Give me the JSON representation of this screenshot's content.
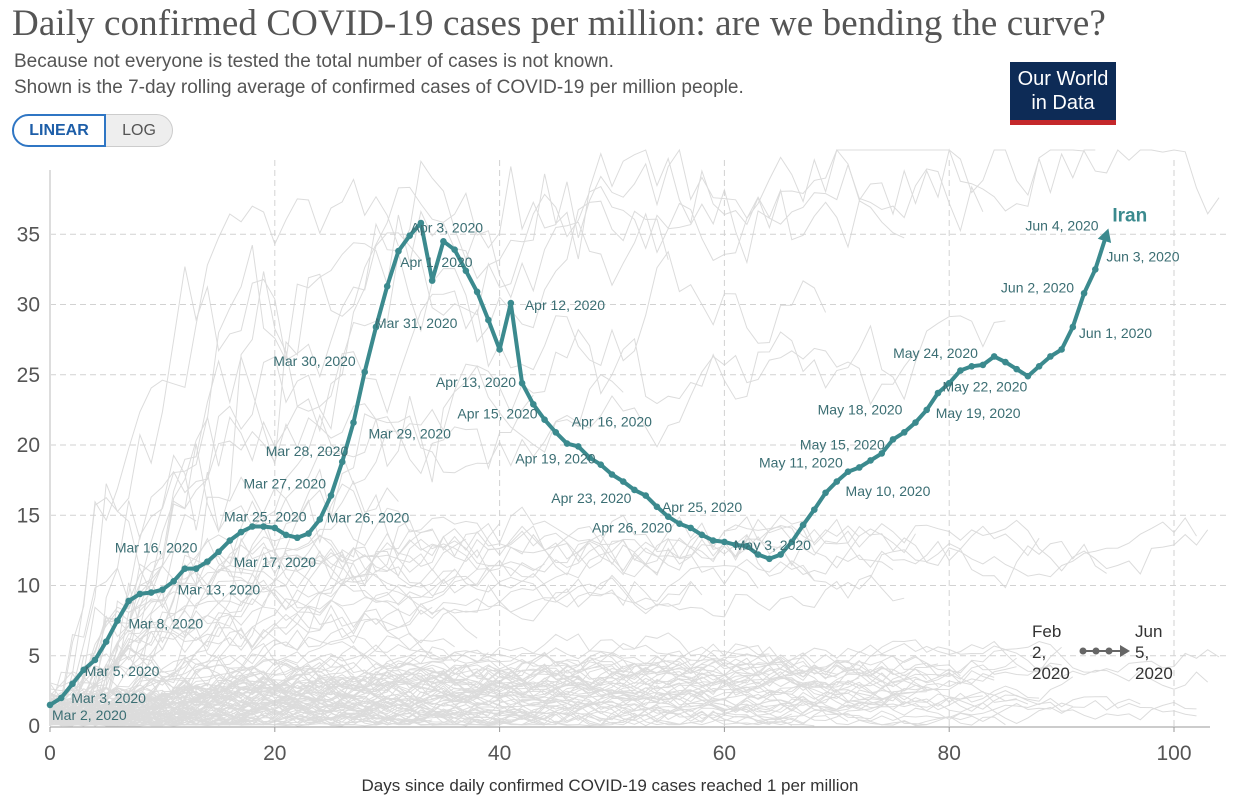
{
  "title": "Daily confirmed COVID-19 cases per million: are we bending the curve?",
  "subtitle_line1": "Because not everyone is tested the total number of cases is not known.",
  "subtitle_line2": "Shown is the 7-day rolling average of confirmed cases of COVID-19 per million people.",
  "logo": {
    "line1": "Our World",
    "line2": "in Data"
  },
  "scale_toggle": {
    "linear_label": "LINEAR",
    "log_label": "LOG",
    "selected": "LINEAR"
  },
  "timeline": {
    "start_label": "Feb\n2,\n2020",
    "end_label": "Jun\n5,\n2020"
  },
  "colors": {
    "highlight": "#3b8a8e",
    "background_lines": "#dcdcdc",
    "grid": "#d2d2d2",
    "logo_bg": "#0d2b56",
    "logo_bar": "#c4282b"
  },
  "chart_data": {
    "type": "line",
    "title": "Daily confirmed COVID-19 cases per million: are we bending the curve?",
    "xlabel": "Days since daily confirmed COVID-19 cases reached 1 per million",
    "ylabel": "",
    "xlim": [
      0,
      105
    ],
    "ylim": [
      0,
      39
    ],
    "x_ticks": [
      0,
      20,
      40,
      60,
      80,
      100
    ],
    "y_ticks": [
      0,
      5,
      10,
      15,
      20,
      25,
      30,
      35
    ],
    "grid": true,
    "highlighted_series": {
      "name": "Iran",
      "points": [
        [
          0,
          1.5
        ],
        [
          1,
          2.0
        ],
        [
          2,
          3.0
        ],
        [
          3,
          4.0
        ],
        [
          4,
          4.7
        ],
        [
          5,
          6.0
        ],
        [
          6,
          7.5
        ],
        [
          7,
          8.9
        ],
        [
          8,
          9.4
        ],
        [
          9,
          9.5
        ],
        [
          10,
          9.7
        ],
        [
          11,
          10.3
        ],
        [
          12,
          11.2
        ],
        [
          13,
          11.2
        ],
        [
          14,
          11.7
        ],
        [
          15,
          12.4
        ],
        [
          16,
          13.2
        ],
        [
          17,
          13.8
        ],
        [
          18,
          14.2
        ],
        [
          19,
          14.2
        ],
        [
          20,
          14.1
        ],
        [
          21,
          13.6
        ],
        [
          22,
          13.4
        ],
        [
          23,
          13.7
        ],
        [
          24,
          14.7
        ],
        [
          25,
          16.4
        ],
        [
          26,
          18.8
        ],
        [
          27,
          21.6
        ],
        [
          28,
          25.2
        ],
        [
          29,
          28.4
        ],
        [
          30,
          31.3
        ],
        [
          31,
          33.8
        ],
        [
          32,
          34.9
        ],
        [
          33,
          35.8
        ],
        [
          34,
          31.7
        ],
        [
          35,
          34.5
        ],
        [
          36,
          33.9
        ],
        [
          37,
          32.4
        ],
        [
          38,
          30.9
        ],
        [
          39,
          28.9
        ],
        [
          40,
          26.8
        ],
        [
          41,
          30.1
        ],
        [
          42,
          24.4
        ],
        [
          43,
          22.9
        ],
        [
          44,
          21.8
        ],
        [
          45,
          20.9
        ],
        [
          46,
          20.1
        ],
        [
          47,
          19.9
        ],
        [
          48,
          19.1
        ],
        [
          49,
          18.6
        ],
        [
          50,
          17.9
        ],
        [
          51,
          17.4
        ],
        [
          52,
          16.8
        ],
        [
          53,
          16.4
        ],
        [
          54,
          15.6
        ],
        [
          55,
          14.9
        ],
        [
          56,
          14.4
        ],
        [
          57,
          14.1
        ],
        [
          58,
          13.6
        ],
        [
          59,
          13.2
        ],
        [
          60,
          13.1
        ],
        [
          61,
          12.9
        ],
        [
          62,
          12.8
        ],
        [
          63,
          12.2
        ],
        [
          64,
          11.9
        ],
        [
          65,
          12.2
        ],
        [
          66,
          13.1
        ],
        [
          67,
          14.3
        ],
        [
          68,
          15.4
        ],
        [
          69,
          16.6
        ],
        [
          70,
          17.4
        ],
        [
          71,
          18.1
        ],
        [
          72,
          18.4
        ],
        [
          73,
          18.9
        ],
        [
          74,
          19.4
        ],
        [
          75,
          20.4
        ],
        [
          76,
          20.9
        ],
        [
          77,
          21.6
        ],
        [
          78,
          22.5
        ],
        [
          79,
          23.7
        ],
        [
          80,
          24.4
        ],
        [
          81,
          25.3
        ],
        [
          82,
          25.6
        ],
        [
          83,
          25.7
        ],
        [
          84,
          26.3
        ],
        [
          85,
          25.9
        ],
        [
          86,
          25.4
        ],
        [
          87,
          24.9
        ],
        [
          88,
          25.6
        ],
        [
          89,
          26.3
        ],
        [
          90,
          26.8
        ],
        [
          91,
          28.4
        ],
        [
          92,
          30.8
        ],
        [
          93,
          32.5
        ],
        [
          94,
          35.0
        ]
      ]
    },
    "annotations": [
      {
        "text": "Mar 2, 2020",
        "x": 0,
        "y": 1.5
      },
      {
        "text": "Mar 3, 2020",
        "x": 1,
        "y": 2.0
      },
      {
        "text": "Mar 5, 2020",
        "x": 3,
        "y": 4.0
      },
      {
        "text": "Mar 8, 2020",
        "x": 6,
        "y": 7.5
      },
      {
        "text": "Mar 13, 2020",
        "x": 11,
        "y": 10.3
      },
      {
        "text": "Mar 16, 2020",
        "x": 14,
        "y": 11.7
      },
      {
        "text": "Mar 17, 2020",
        "x": 15,
        "y": 12.4
      },
      {
        "text": "Mar 25, 2020",
        "x": 23,
        "y": 13.7
      },
      {
        "text": "Mar 26, 2020",
        "x": 24,
        "y": 14.7
      },
      {
        "text": "Mar 27, 2020",
        "x": 25,
        "y": 16.4
      },
      {
        "text": "Mar 28, 2020",
        "x": 26,
        "y": 18.8
      },
      {
        "text": "Mar 29, 2020",
        "x": 27,
        "y": 21.6
      },
      {
        "text": "Mar 30, 2020",
        "x": 28,
        "y": 25.2
      },
      {
        "text": "Mar 31, 2020",
        "x": 29,
        "y": 28.4
      },
      {
        "text": "Apr 1, 2020",
        "x": 30,
        "y": 31.3
      },
      {
        "text": "Apr 3, 2020",
        "x": 32,
        "y": 34.9
      },
      {
        "text": "Apr 12, 2020",
        "x": 41,
        "y": 30.1
      },
      {
        "text": "Apr 13, 2020",
        "x": 42,
        "y": 24.4
      },
      {
        "text": "Apr 15, 2020",
        "x": 44,
        "y": 21.8
      },
      {
        "text": "Apr 16, 2020",
        "x": 45,
        "y": 20.9
      },
      {
        "text": "Apr 19, 2020",
        "x": 48,
        "y": 19.1
      },
      {
        "text": "Apr 23, 2020",
        "x": 52,
        "y": 16.8
      },
      {
        "text": "Apr 25, 2020",
        "x": 54,
        "y": 15.6
      },
      {
        "text": "Apr 26, 2020",
        "x": 55,
        "y": 14.9
      },
      {
        "text": "May 3, 2020",
        "x": 62,
        "y": 12.8
      },
      {
        "text": "May 10, 2020",
        "x": 69,
        "y": 16.6
      },
      {
        "text": "May 11, 2020",
        "x": 70,
        "y": 17.4
      },
      {
        "text": "May 15, 2020",
        "x": 74,
        "y": 19.4
      },
      {
        "text": "May 18, 2020",
        "x": 77,
        "y": 21.6
      },
      {
        "text": "May 19, 2020",
        "x": 78,
        "y": 22.5
      },
      {
        "text": "May 22, 2020",
        "x": 81,
        "y": 25.3
      },
      {
        "text": "May 24, 2020",
        "x": 83,
        "y": 25.7
      },
      {
        "text": "Jun 1, 2020",
        "x": 91,
        "y": 28.4
      },
      {
        "text": "Jun 2, 2020",
        "x": 92,
        "y": 30.8
      },
      {
        "text": "Jun 3, 2020",
        "x": 93,
        "y": 32.5
      },
      {
        "text": "Jun 4, 2020",
        "x": 94,
        "y": 35.0
      }
    ]
  }
}
